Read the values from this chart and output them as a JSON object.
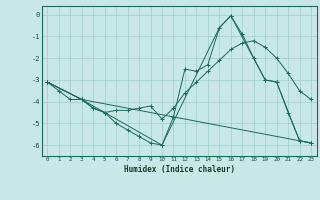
{
  "xlabel": "Humidex (Indice chaleur)",
  "bg_color": "#c8e8e8",
  "grid_color": "#9ecece",
  "line_color": "#1a6b5a",
  "xlim": [
    -0.5,
    23.5
  ],
  "ylim": [
    -6.5,
    0.4
  ],
  "yticks": [
    0,
    -1,
    -2,
    -3,
    -4,
    -5,
    -6
  ],
  "xticks": [
    0,
    1,
    2,
    3,
    4,
    5,
    6,
    7,
    8,
    9,
    10,
    11,
    12,
    13,
    14,
    15,
    16,
    17,
    18,
    19,
    20,
    21,
    22,
    23
  ],
  "series": [
    {
      "x": [
        0,
        1,
        2,
        3,
        4,
        5,
        6,
        7,
        8,
        9,
        10,
        11,
        12,
        13,
        14,
        15,
        16,
        17,
        18,
        19,
        20,
        21,
        22,
        23
      ],
      "y": [
        -3.1,
        -3.5,
        -3.9,
        -3.9,
        -4.3,
        -4.5,
        -5.0,
        -5.3,
        -5.6,
        -5.9,
        -6.0,
        -4.7,
        -2.5,
        -2.6,
        -2.3,
        -0.6,
        -0.05,
        -0.9,
        -2.0,
        -3.0,
        -3.1,
        -4.5,
        -5.8,
        -5.9
      ]
    },
    {
      "x": [
        0,
        3,
        4,
        5,
        6,
        7,
        8,
        9,
        10,
        11,
        12,
        13,
        14,
        15,
        16,
        17,
        18,
        19,
        20,
        21,
        22,
        23
      ],
      "y": [
        -3.1,
        -3.9,
        -4.3,
        -4.5,
        -4.4,
        -4.4,
        -4.3,
        -4.2,
        -4.8,
        -4.3,
        -3.6,
        -3.1,
        -2.6,
        -2.1,
        -1.6,
        -1.3,
        -1.2,
        -1.5,
        -2.0,
        -2.7,
        -3.5,
        -3.9
      ]
    },
    {
      "x": [
        0,
        3,
        10,
        15,
        16,
        19,
        20,
        22,
        23
      ],
      "y": [
        -3.1,
        -3.9,
        -6.0,
        -0.6,
        -0.05,
        -3.0,
        -3.1,
        -5.8,
        -5.9
      ]
    },
    {
      "x": [
        0,
        3,
        23
      ],
      "y": [
        -3.1,
        -3.9,
        -5.9
      ]
    }
  ]
}
